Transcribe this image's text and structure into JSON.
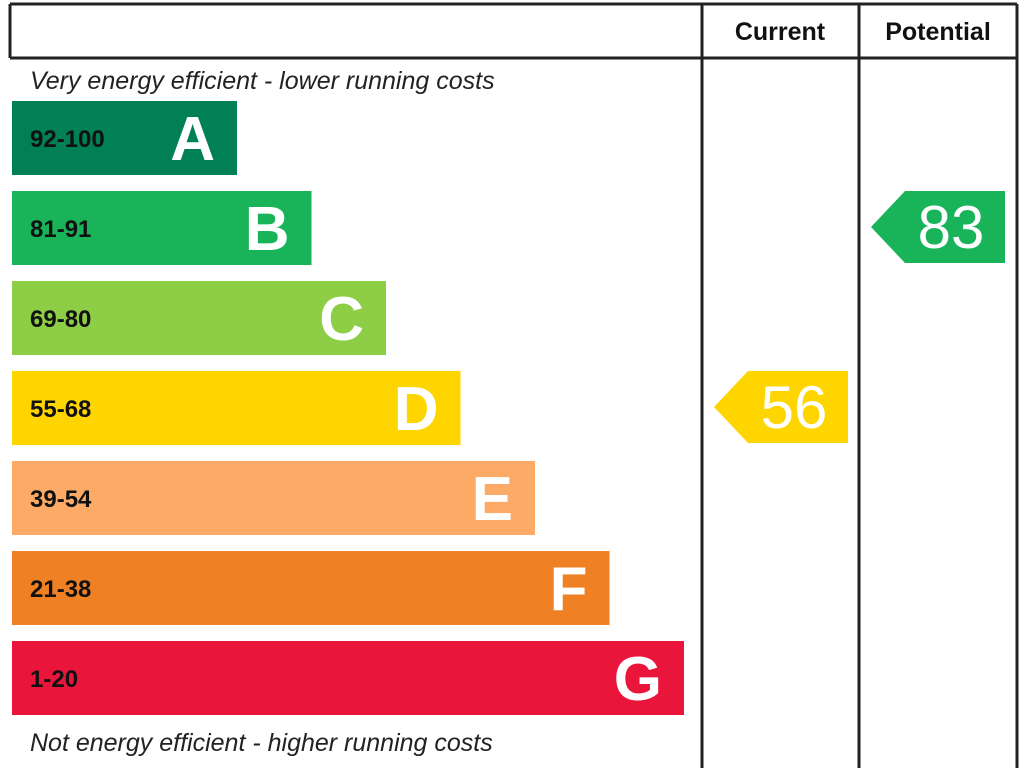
{
  "headers": {
    "current": "Current",
    "potential": "Potential"
  },
  "top_caption": "Very energy efficient - lower running costs",
  "bottom_caption": "Not energy efficient - higher running costs",
  "chart_data": {
    "type": "bar",
    "title": "",
    "bands": [
      {
        "range": "92-100",
        "letter": "A",
        "min": 92,
        "max": 100,
        "color": "#008054"
      },
      {
        "range": "81-91",
        "letter": "B",
        "min": 81,
        "max": 91,
        "color": "#19b459"
      },
      {
        "range": "69-80",
        "letter": "C",
        "min": 69,
        "max": 80,
        "color": "#8dce46"
      },
      {
        "range": "55-68",
        "letter": "D",
        "min": 55,
        "max": 68,
        "color": "#ffd500"
      },
      {
        "range": "39-54",
        "letter": "E",
        "min": 39,
        "max": 54,
        "color": "#fcaa65"
      },
      {
        "range": "21-38",
        "letter": "F",
        "min": 21,
        "max": 38,
        "color": "#ef8023"
      },
      {
        "range": "1-20",
        "letter": "G",
        "min": 1,
        "max": 20,
        "color": "#e9153b"
      }
    ],
    "current": {
      "label": "Current",
      "value": 56,
      "band": "D",
      "color": "#ffd500"
    },
    "potential": {
      "label": "Potential",
      "value": 83,
      "band": "B",
      "color": "#19b459"
    }
  }
}
